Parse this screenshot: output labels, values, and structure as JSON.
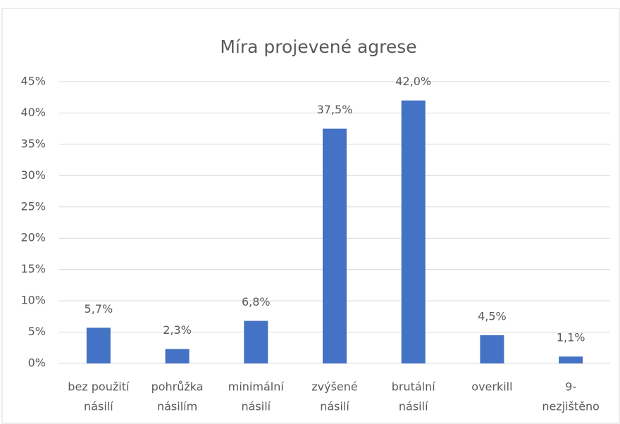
{
  "chart_data": {
    "type": "bar",
    "title": "Míra projevené agrese",
    "categories": [
      [
        "bez použití",
        "násilí"
      ],
      [
        "pohrůžka",
        "násilím"
      ],
      [
        "minimální",
        "násilí"
      ],
      [
        "zvýšené",
        "násilí"
      ],
      [
        "brutální",
        "násilí"
      ],
      [
        "overkill"
      ],
      [
        "9-",
        "nezjištěno"
      ]
    ],
    "values": [
      5.7,
      2.3,
      6.8,
      37.5,
      42.0,
      4.5,
      1.1
    ],
    "value_labels": [
      "5,7%",
      "2,3%",
      "6,8%",
      "37,5%",
      "42,0%",
      "4,5%",
      "1,1%"
    ],
    "color": "#4472c4",
    "ylim": [
      0,
      45
    ],
    "yticks": [
      {
        "value": 0,
        "label": "0%"
      },
      {
        "value": 5,
        "label": "5%"
      },
      {
        "value": 10,
        "label": "10%"
      },
      {
        "value": 15,
        "label": "15%"
      },
      {
        "value": 20,
        "label": "20%"
      },
      {
        "value": 25,
        "label": "25%"
      },
      {
        "value": 30,
        "label": "30%"
      },
      {
        "value": 35,
        "label": "35%"
      },
      {
        "value": 40,
        "label": "40%"
      },
      {
        "value": 45,
        "label": "45%"
      }
    ],
    "grid": true
  }
}
